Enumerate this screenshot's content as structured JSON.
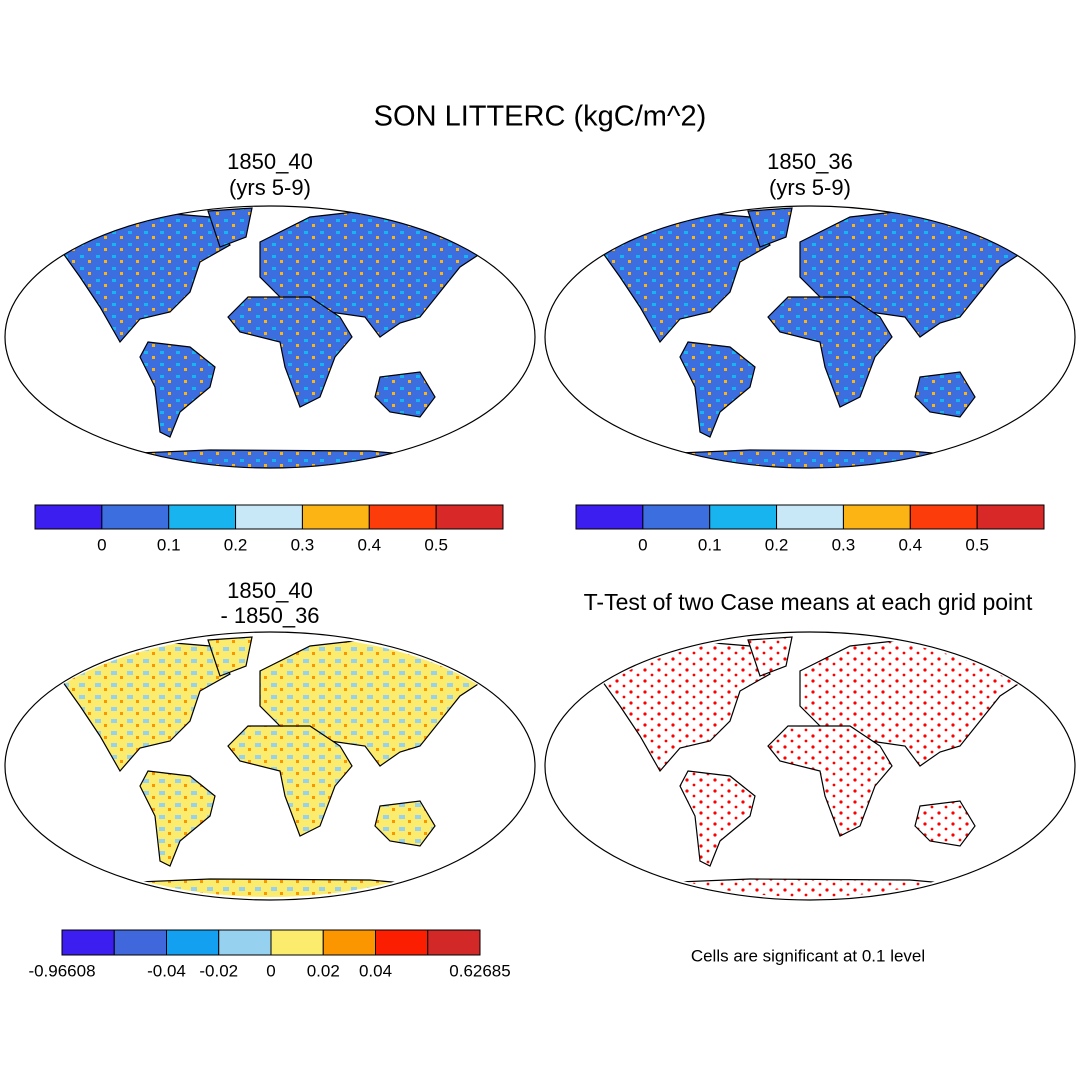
{
  "title": "SON LITTERC (kgC/m^2)",
  "panels": [
    {
      "title": [
        "1850_40",
        "(yrs 5-9)"
      ],
      "colorbar": {
        "colors": [
          "#3c1ef0",
          "#3c6ee0",
          "#18b4f0",
          "#c8e8f8",
          "#fcb414",
          "#fc3c0a",
          "#d82828"
        ],
        "labels": [
          null,
          "0",
          "0.1",
          "0.2",
          "0.3",
          "0.4",
          "0.5",
          null
        ]
      }
    },
    {
      "title": [
        "1850_36",
        "(yrs 5-9)"
      ],
      "colorbar": {
        "colors": [
          "#3c1ef0",
          "#3c6ee0",
          "#18b4f0",
          "#c8e8f8",
          "#fcb414",
          "#fc3c0a",
          "#d82828"
        ],
        "labels": [
          null,
          "0",
          "0.1",
          "0.2",
          "0.3",
          "0.4",
          "0.5",
          null
        ]
      }
    },
    {
      "title": [
        "1850_40",
        "- 1850_36"
      ],
      "colorbar": {
        "colors": [
          "#3c1ef0",
          "#4068dc",
          "#14a0f0",
          "#96d2f0",
          "#fcec6e",
          "#fc9600",
          "#fc1e00",
          "#d22828"
        ],
        "labels": [
          "-0.96608",
          null,
          "-0.04",
          "-0.02",
          "0",
          "0.02",
          "0.04",
          null,
          "0.62685"
        ]
      }
    },
    {
      "title": [
        "T-Test of two Case means at each grid point"
      ],
      "note": "Cells are significant at 0.1 level"
    }
  ]
}
